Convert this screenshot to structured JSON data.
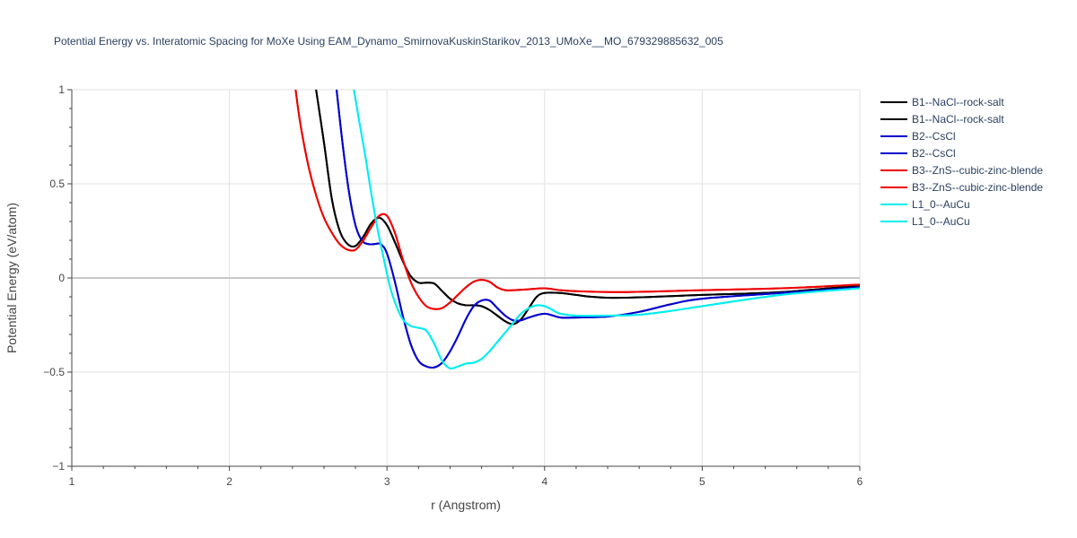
{
  "chart_data": {
    "type": "line",
    "title": "Potential Energy vs. Interatomic Spacing for MoXe Using EAM_Dynamo_SmirnovaKuskinStarikov_2013_UMoXe__MO_679329885632_005",
    "xlabel": "r (Angstrom)",
    "ylabel": "Potential Energy (eV/atom)",
    "xlim": [
      1,
      6
    ],
    "ylim": [
      -1,
      1
    ],
    "x_ticks": [
      "1",
      "2",
      "3",
      "4",
      "5",
      "6"
    ],
    "y_ticks": [
      "−1",
      "−0.5",
      "0",
      "0.5",
      "1"
    ],
    "grid": true,
    "legend_position": "right",
    "series": [
      {
        "name": "B1--NaCl--rock-salt",
        "color": "#000000",
        "x": [
          2.55,
          2.6,
          2.65,
          2.7,
          2.75,
          2.8,
          2.85,
          2.9,
          2.95,
          3.0,
          3.05,
          3.1,
          3.15,
          3.2,
          3.25,
          3.3,
          3.35,
          3.4,
          3.45,
          3.5,
          3.55,
          3.6,
          3.65,
          3.7,
          3.75,
          3.8,
          3.85,
          3.9,
          3.95,
          4.0,
          4.1,
          4.2,
          4.3,
          4.5,
          5.0,
          5.5,
          6.0
        ],
        "y": [
          1.0,
          0.72,
          0.42,
          0.25,
          0.18,
          0.17,
          0.22,
          0.29,
          0.32,
          0.28,
          0.19,
          0.09,
          0.01,
          -0.025,
          -0.025,
          -0.03,
          -0.07,
          -0.11,
          -0.135,
          -0.145,
          -0.145,
          -0.15,
          -0.17,
          -0.2,
          -0.23,
          -0.245,
          -0.22,
          -0.16,
          -0.1,
          -0.08,
          -0.08,
          -0.09,
          -0.1,
          -0.105,
          -0.09,
          -0.075,
          -0.04
        ]
      },
      {
        "name": "B1--NaCl--rock-salt",
        "color": "#000000",
        "x": [
          2.55,
          2.6,
          2.65,
          2.7,
          2.75,
          2.8,
          2.85,
          2.9,
          2.95,
          3.0,
          3.05,
          3.1,
          3.15,
          3.2,
          3.25,
          3.3,
          3.35,
          3.4,
          3.45,
          3.5,
          3.55,
          3.6,
          3.65,
          3.7,
          3.75,
          3.8,
          3.85,
          3.9,
          3.95,
          4.0,
          4.1,
          4.2,
          4.3,
          4.5,
          5.0,
          5.5,
          6.0
        ],
        "y": [
          1.0,
          0.72,
          0.42,
          0.25,
          0.18,
          0.17,
          0.22,
          0.29,
          0.32,
          0.28,
          0.19,
          0.09,
          0.01,
          -0.025,
          -0.025,
          -0.03,
          -0.07,
          -0.11,
          -0.135,
          -0.145,
          -0.145,
          -0.15,
          -0.17,
          -0.2,
          -0.23,
          -0.245,
          -0.22,
          -0.16,
          -0.1,
          -0.08,
          -0.08,
          -0.09,
          -0.1,
          -0.105,
          -0.09,
          -0.075,
          -0.04
        ]
      },
      {
        "name": "B2--CsCl",
        "color": "#0000cc",
        "x": [
          2.68,
          2.72,
          2.76,
          2.8,
          2.84,
          2.88,
          2.92,
          2.96,
          3.0,
          3.05,
          3.1,
          3.15,
          3.2,
          3.25,
          3.3,
          3.35,
          3.4,
          3.45,
          3.5,
          3.55,
          3.6,
          3.65,
          3.7,
          3.75,
          3.8,
          3.85,
          3.9,
          4.0,
          4.1,
          4.2,
          4.4,
          4.6,
          4.8,
          5.0,
          5.5,
          6.0
        ],
        "y": [
          1.0,
          0.7,
          0.45,
          0.28,
          0.2,
          0.18,
          0.18,
          0.18,
          0.13,
          -0.02,
          -0.2,
          -0.35,
          -0.44,
          -0.47,
          -0.475,
          -0.45,
          -0.39,
          -0.31,
          -0.22,
          -0.15,
          -0.12,
          -0.12,
          -0.16,
          -0.2,
          -0.225,
          -0.225,
          -0.21,
          -0.19,
          -0.21,
          -0.21,
          -0.205,
          -0.18,
          -0.14,
          -0.11,
          -0.08,
          -0.05
        ]
      },
      {
        "name": "B2--CsCl",
        "color": "#0000cc",
        "x": [
          2.68,
          2.72,
          2.76,
          2.8,
          2.84,
          2.88,
          2.92,
          2.96,
          3.0,
          3.05,
          3.1,
          3.15,
          3.2,
          3.25,
          3.3,
          3.35,
          3.4,
          3.45,
          3.5,
          3.55,
          3.6,
          3.65,
          3.7,
          3.75,
          3.8,
          3.85,
          3.9,
          4.0,
          4.1,
          4.2,
          4.4,
          4.6,
          4.8,
          5.0,
          5.5,
          6.0
        ],
        "y": [
          1.0,
          0.7,
          0.45,
          0.28,
          0.2,
          0.18,
          0.18,
          0.18,
          0.13,
          -0.02,
          -0.2,
          -0.35,
          -0.44,
          -0.47,
          -0.475,
          -0.45,
          -0.39,
          -0.31,
          -0.22,
          -0.15,
          -0.12,
          -0.12,
          -0.16,
          -0.2,
          -0.225,
          -0.225,
          -0.21,
          -0.19,
          -0.21,
          -0.21,
          -0.205,
          -0.18,
          -0.14,
          -0.11,
          -0.08,
          -0.05
        ]
      },
      {
        "name": "B3--ZnS--cubic-zinc-blende",
        "color": "#ee0000",
        "x": [
          2.42,
          2.45,
          2.5,
          2.55,
          2.6,
          2.65,
          2.7,
          2.75,
          2.8,
          2.85,
          2.9,
          2.95,
          3.0,
          3.05,
          3.1,
          3.15,
          3.2,
          3.25,
          3.3,
          3.35,
          3.4,
          3.45,
          3.5,
          3.55,
          3.6,
          3.65,
          3.7,
          3.75,
          3.8,
          3.9,
          4.0,
          4.1,
          4.2,
          4.5,
          5.0,
          5.5,
          6.0
        ],
        "y": [
          1.0,
          0.82,
          0.6,
          0.44,
          0.32,
          0.24,
          0.18,
          0.15,
          0.15,
          0.2,
          0.27,
          0.33,
          0.33,
          0.24,
          0.1,
          -0.02,
          -0.1,
          -0.15,
          -0.165,
          -0.16,
          -0.13,
          -0.09,
          -0.05,
          -0.02,
          -0.01,
          -0.02,
          -0.05,
          -0.065,
          -0.065,
          -0.06,
          -0.055,
          -0.065,
          -0.07,
          -0.075,
          -0.065,
          -0.055,
          -0.035
        ]
      },
      {
        "name": "B3--ZnS--cubic-zinc-blende",
        "color": "#ee0000",
        "x": [
          2.42,
          2.45,
          2.5,
          2.55,
          2.6,
          2.65,
          2.7,
          2.75,
          2.8,
          2.85,
          2.9,
          2.95,
          3.0,
          3.05,
          3.1,
          3.15,
          3.2,
          3.25,
          3.3,
          3.35,
          3.4,
          3.45,
          3.5,
          3.55,
          3.6,
          3.65,
          3.7,
          3.75,
          3.8,
          3.9,
          4.0,
          4.1,
          4.2,
          4.5,
          5.0,
          5.5,
          6.0
        ],
        "y": [
          1.0,
          0.82,
          0.6,
          0.44,
          0.32,
          0.24,
          0.18,
          0.15,
          0.15,
          0.2,
          0.27,
          0.33,
          0.33,
          0.24,
          0.1,
          -0.02,
          -0.1,
          -0.15,
          -0.165,
          -0.16,
          -0.13,
          -0.09,
          -0.05,
          -0.02,
          -0.01,
          -0.02,
          -0.05,
          -0.065,
          -0.065,
          -0.06,
          -0.055,
          -0.065,
          -0.07,
          -0.075,
          -0.065,
          -0.055,
          -0.035
        ]
      },
      {
        "name": "L1_0--AuCu",
        "color": "#00eeee",
        "x": [
          2.79,
          2.82,
          2.86,
          2.9,
          2.94,
          2.98,
          3.02,
          3.06,
          3.1,
          3.15,
          3.2,
          3.25,
          3.3,
          3.35,
          3.4,
          3.45,
          3.5,
          3.55,
          3.6,
          3.65,
          3.7,
          3.75,
          3.8,
          3.85,
          3.9,
          3.95,
          4.0,
          4.05,
          4.1,
          4.2,
          4.4,
          4.6,
          4.8,
          5.0,
          5.5,
          6.0
        ],
        "y": [
          1.0,
          0.85,
          0.66,
          0.45,
          0.26,
          0.1,
          -0.05,
          -0.15,
          -0.22,
          -0.255,
          -0.265,
          -0.28,
          -0.35,
          -0.44,
          -0.48,
          -0.47,
          -0.455,
          -0.45,
          -0.43,
          -0.39,
          -0.34,
          -0.29,
          -0.24,
          -0.19,
          -0.16,
          -0.145,
          -0.15,
          -0.17,
          -0.19,
          -0.2,
          -0.2,
          -0.195,
          -0.175,
          -0.15,
          -0.09,
          -0.055
        ]
      },
      {
        "name": "L1_0--AuCu",
        "color": "#00eeee",
        "x": [
          2.79,
          2.82,
          2.86,
          2.9,
          2.94,
          2.98,
          3.02,
          3.06,
          3.1,
          3.15,
          3.2,
          3.25,
          3.3,
          3.35,
          3.4,
          3.45,
          3.5,
          3.55,
          3.6,
          3.65,
          3.7,
          3.75,
          3.8,
          3.85,
          3.9,
          3.95,
          4.0,
          4.05,
          4.1,
          4.2,
          4.4,
          4.6,
          4.8,
          5.0,
          5.5,
          6.0
        ],
        "y": [
          1.0,
          0.85,
          0.66,
          0.45,
          0.26,
          0.1,
          -0.05,
          -0.15,
          -0.22,
          -0.255,
          -0.265,
          -0.28,
          -0.35,
          -0.44,
          -0.48,
          -0.47,
          -0.455,
          -0.45,
          -0.43,
          -0.39,
          -0.34,
          -0.29,
          -0.24,
          -0.19,
          -0.16,
          -0.145,
          -0.15,
          -0.17,
          -0.19,
          -0.2,
          -0.2,
          -0.195,
          -0.175,
          -0.15,
          -0.09,
          -0.055
        ]
      }
    ]
  }
}
